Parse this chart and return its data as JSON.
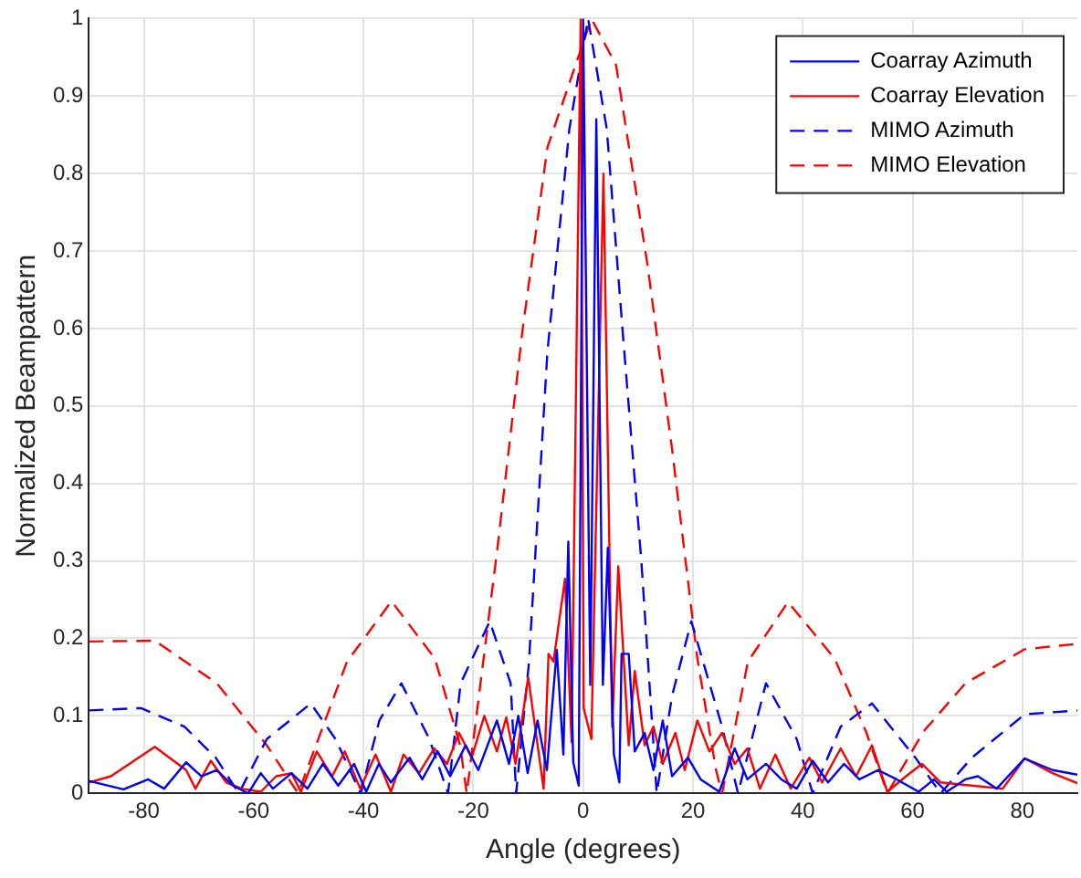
{
  "chart_data": {
    "type": "line",
    "xlabel": "Angle (degrees)",
    "ylabel": "Normalized Beampattern",
    "xlim": [
      -90,
      90
    ],
    "xticks": [
      -80,
      -60,
      -40,
      -20,
      0,
      20,
      40,
      60,
      80
    ],
    "ylim": [
      0,
      1
    ],
    "yticks": [
      0,
      0.1,
      0.2,
      0.3,
      0.4,
      0.5,
      0.6,
      0.7,
      0.8,
      0.9,
      1
    ],
    "grid": true,
    "legend": "top right",
    "marker": "none",
    "series": [
      {
        "name": "Coarray Azimuth",
        "color": "#0000ff",
        "line_style": "solid",
        "x": [
          -90,
          -83.7,
          -79.2,
          -76.3,
          -72.3,
          -69.5,
          -66.7,
          -63.8,
          -61,
          -58.7,
          -56.5,
          -53.1,
          -50.2,
          -47.4,
          -44.6,
          -41.7,
          -39.5,
          -37.2,
          -35,
          -31.6,
          -29.3,
          -26.5,
          -24.2,
          -21.4,
          -19.1,
          -15.7,
          -13.5,
          -11.8,
          -10.1,
          -8.3,
          -6.6,
          -4.8,
          -3.6,
          -2.7,
          -1.8,
          -0.8,
          0,
          1.3,
          2.4,
          3.6,
          4.5,
          5.6,
          6.6,
          7,
          8.3,
          9.4,
          11.2,
          12.8,
          14.5,
          16.2,
          19.1,
          21.4,
          24.8,
          27.6,
          29.9,
          33.3,
          36.1,
          38.9,
          41.8,
          44.6,
          47.5,
          50.3,
          53.7,
          57.1,
          61.1,
          63.9,
          66.2,
          69.6,
          71.9,
          75.3,
          80.4,
          85.5,
          90
        ],
        "values": [
          0.016,
          0.005,
          0.018,
          0.006,
          0.04,
          0.022,
          0.03,
          0.01,
          0,
          0.026,
          0.006,
          0.026,
          0.006,
          0.038,
          0.01,
          0.038,
          0.002,
          0.038,
          0.014,
          0.046,
          0.018,
          0.054,
          0.022,
          0.062,
          0.03,
          0.094,
          0.038,
          0.1,
          0.026,
          0.094,
          0.03,
          0.185,
          0.05,
          0.325,
          0.04,
          0.01,
          1,
          0.14,
          0.87,
          0.14,
          0.317,
          0.05,
          0.014,
          0.18,
          0.18,
          0.054,
          0.078,
          0.03,
          0.094,
          0.022,
          0.046,
          0.018,
          0.002,
          0.058,
          0.018,
          0.038,
          0.018,
          0.006,
          0.042,
          0.014,
          0.038,
          0.018,
          0.03,
          0.018,
          0.002,
          0.018,
          0.002,
          0.018,
          0.022,
          0.006,
          0.045,
          0.03,
          0.024
        ]
      },
      {
        "name": "Coarray Elevation",
        "color": "#ff0000",
        "line_style": "solid",
        "x": [
          -90,
          -86,
          -78,
          -72.3,
          -70.6,
          -67.8,
          -65,
          -62.2,
          -58.7,
          -55.9,
          -53.1,
          -51.4,
          -48.5,
          -45.7,
          -43.4,
          -40.6,
          -37.8,
          -35,
          -32.7,
          -29.9,
          -27.1,
          -24.8,
          -22.6,
          -20.3,
          -18,
          -15.7,
          -14,
          -12.3,
          -10,
          -7.2,
          -6.3,
          -5.4,
          -3.3,
          -2.1,
          -0.45,
          0.1,
          1.5,
          3.7,
          5.3,
          6.4,
          8.3,
          9.4,
          11.2,
          12.8,
          14.5,
          16.8,
          18.5,
          20.8,
          23,
          25.3,
          27.6,
          29.9,
          32.2,
          35,
          37.8,
          41.2,
          43.5,
          46.9,
          49.7,
          52.6,
          55.4,
          58.8,
          61.7,
          65.1,
          70.8,
          76.4,
          80.4,
          85.5,
          90
        ],
        "values": [
          0.014,
          0.022,
          0.06,
          0.03,
          0.006,
          0.042,
          0.014,
          0.006,
          0.002,
          0.022,
          0.026,
          0.002,
          0.054,
          0.022,
          0.054,
          0.006,
          0.05,
          0.002,
          0.05,
          0.026,
          0.058,
          0.038,
          0.078,
          0.046,
          0.1,
          0.054,
          0.098,
          0.038,
          0.15,
          0.006,
          0.18,
          0.17,
          0.277,
          0.066,
          1,
          0.11,
          0.07,
          0.8,
          0.086,
          0.293,
          0.062,
          0.158,
          0.062,
          0.086,
          0.038,
          0.078,
          0.03,
          0.094,
          0.054,
          0.078,
          0.038,
          0.058,
          0.006,
          0.05,
          0.006,
          0.046,
          0.014,
          0.058,
          0.022,
          0.062,
          0.002,
          0.022,
          0.038,
          0.014,
          0.01,
          0.006,
          0.045,
          0.026,
          0.013
        ]
      },
      {
        "name": "MIMO Azimuth",
        "color": "#0000ff",
        "line_style": "dashed",
        "x": [
          -90,
          -80.5,
          -72.6,
          -66.9,
          -62.7,
          -57.6,
          -49.6,
          -45.1,
          -40.5,
          -37.1,
          -33.1,
          -28,
          -24.6,
          -22.3,
          -17,
          -13.2,
          -12.2,
          -9.9,
          -6.5,
          -2.5,
          0.9,
          4.3,
          7.2,
          10.6,
          13.4,
          16.2,
          19.7,
          25.3,
          28.2,
          31,
          33.3,
          38.9,
          41.8,
          46.9,
          52.6,
          60.5,
          65.1,
          70.8,
          80.4,
          90
        ],
        "values": [
          0.107,
          0.11,
          0.086,
          0.046,
          0,
          0.07,
          0.116,
          0.07,
          0,
          0.094,
          0.142,
          0.07,
          0,
          0.142,
          0.222,
          0.142,
          0,
          0.166,
          0.57,
          0.858,
          1,
          0.858,
          0.596,
          0.3,
          0,
          0.126,
          0.222,
          0.086,
          0,
          0.078,
          0.142,
          0.07,
          0,
          0.086,
          0.116,
          0.046,
          0,
          0.046,
          0.102,
          0.107
        ]
      },
      {
        "name": "MIMO Elevation",
        "color": "#ff0000",
        "line_style": "dashed",
        "x": [
          -90,
          -78,
          -66.7,
          -57.6,
          -51.9,
          -43,
          -34.9,
          -27,
          -22.4,
          -21.2,
          -15.6,
          -11,
          -6.5,
          1.5,
          6,
          11.7,
          16.2,
          20.8,
          24.2,
          25.3,
          30,
          37.3,
          45.8,
          51.6,
          55.4,
          62,
          69.6,
          80.4,
          90
        ],
        "values": [
          0.196,
          0.197,
          0.142,
          0.062,
          0,
          0.17,
          0.248,
          0.174,
          0.062,
          0,
          0.317,
          0.6,
          0.834,
          1,
          0.94,
          0.683,
          0.444,
          0.174,
          0.03,
          0,
          0.17,
          0.247,
          0.174,
          0.078,
          0,
          0.08,
          0.142,
          0.186,
          0.193
        ]
      }
    ]
  }
}
